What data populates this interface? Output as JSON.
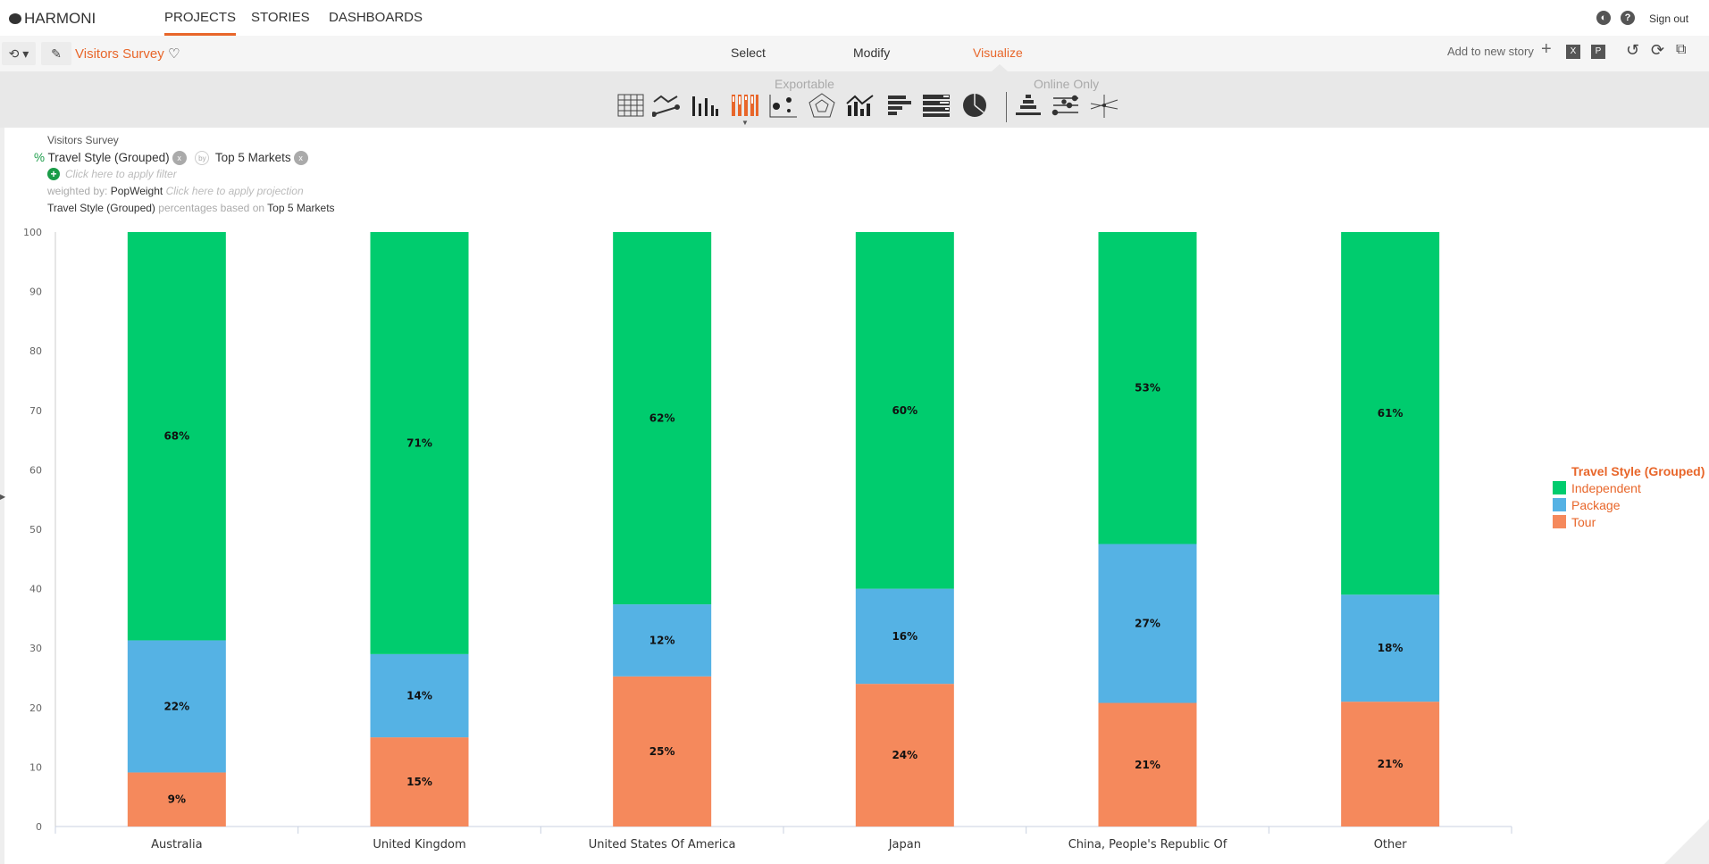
{
  "app": {
    "logo": "HARMONI",
    "nav": [
      "PROJECTS",
      "STORIES",
      "DASHBOARDS"
    ],
    "active_nav": "PROJECTS",
    "sign_out": "Sign out",
    "icons": [
      "contrast-icon",
      "help-icon"
    ]
  },
  "toolbar": {
    "title": "Visitors Survey",
    "steps": [
      "Select",
      "Modify",
      "Visualize"
    ],
    "active_step": "Visualize",
    "add_story": "Add to new story",
    "right_icons": [
      "plus-icon",
      "excel-icon",
      "powerpoint-icon",
      "undo-icon",
      "refresh-icon",
      "present-icon"
    ]
  },
  "ribbon": {
    "exportable": "Exportable",
    "online_only": "Online Only",
    "selected": "stacked-bar-100"
  },
  "filters": {
    "dataset": "Visitors Survey",
    "pct": "%",
    "row_var": "Travel Style (Grouped)",
    "by": "by",
    "col_var": "Top 5 Markets",
    "apply_filter": "Click here to apply filter",
    "weighted_label": "weighted by:",
    "weight": "PopWeight",
    "apply_projection": "Click here to apply projection",
    "basis_var": "Travel Style (Grouped)",
    "basis_text": "percentages based on",
    "basis_base": "Top 5 Markets"
  },
  "chart_data": {
    "type": "bar",
    "stacked": true,
    "categories": [
      "Australia",
      "United Kingdom",
      "United States Of America",
      "Japan",
      "China, People's Republic Of",
      "Other"
    ],
    "series": [
      {
        "name": "Tour",
        "color": "#f5895c",
        "values": [
          9,
          15,
          25,
          24,
          21,
          21
        ]
      },
      {
        "name": "Package",
        "color": "#55b2e4",
        "values": [
          22,
          14,
          12,
          16,
          27,
          18
        ]
      },
      {
        "name": "Independent",
        "color": "#00cc6e",
        "values": [
          68,
          71,
          62,
          60,
          53,
          61
        ]
      }
    ],
    "ylim": [
      0,
      100
    ],
    "yticks": [
      "0",
      "10",
      "20",
      "30",
      "40",
      "50",
      "60",
      "70",
      "80",
      "90",
      "100"
    ],
    "legend_title": "Travel Style (Grouped)",
    "legend_order": [
      "Independent",
      "Package",
      "Tour"
    ],
    "legend": "right",
    "grid": false
  },
  "info": "i"
}
